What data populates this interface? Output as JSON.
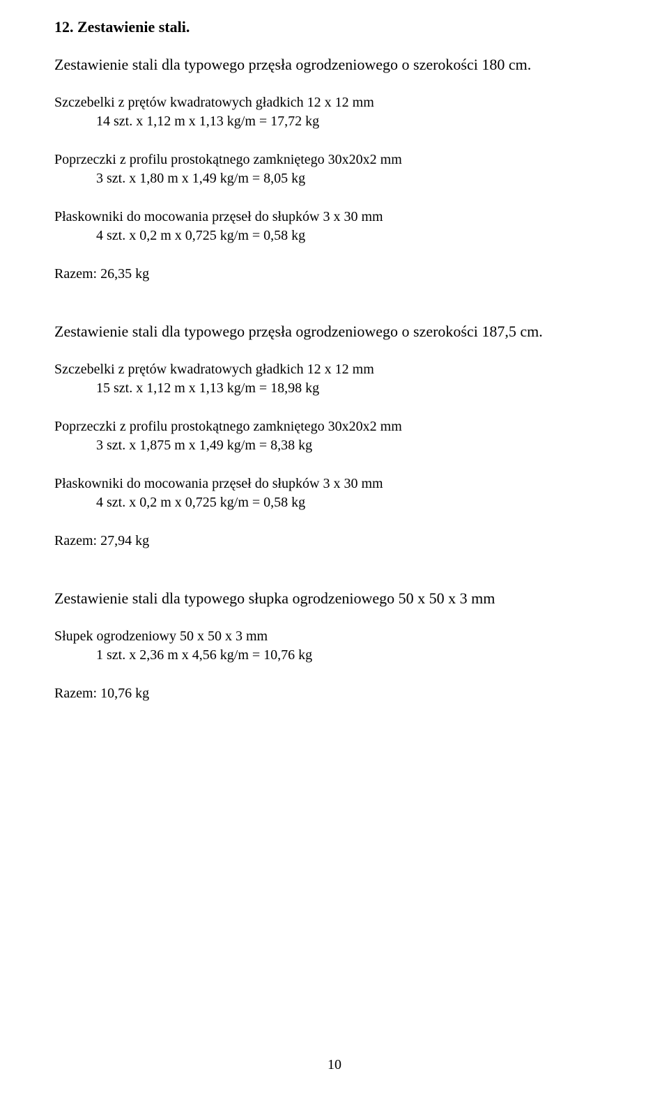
{
  "title": "12. Zestawienie stali.",
  "section1": {
    "heading": "Zestawienie stali dla typowego przęsła ogrodzeniowego o szerokości 180 cm.",
    "szczebelki_label": "Szczebelki z prętów kwadratowych gładkich 12 x 12 mm",
    "szczebelki_calc": "14 szt.  x  1,12 m  x  1,13 kg/m  =  17,72 kg",
    "poprzeczki_label": "Poprzeczki z profilu prostokątnego zamkniętego 30x20x2 mm",
    "poprzeczki_calc": "3 szt.  x  1,80 m  x  1,49 kg/m  =  8,05 kg",
    "plaskowniki_label": "Płaskowniki do mocowania przęseł do słupków 3 x 30 mm",
    "plaskowniki_calc": "4 szt.  x  0,2 m  x  0,725 kg/m  =  0,58 kg",
    "razem": "Razem: 26,35 kg"
  },
  "section2": {
    "heading": "Zestawienie stali dla typowego przęsła ogrodzeniowego o szerokości 187,5 cm.",
    "szczebelki_label": "Szczebelki z prętów kwadratowych gładkich 12 x 12 mm",
    "szczebelki_calc": "15 szt.  x  1,12 m  x  1,13 kg/m  =  18,98 kg",
    "poprzeczki_label": "Poprzeczki z profilu prostokątnego zamkniętego 30x20x2 mm",
    "poprzeczki_calc": "3 szt.  x  1,875 m  x  1,49 kg/m  =  8,38 kg",
    "plaskowniki_label": "Płaskowniki do mocowania przęseł do słupków 3 x 30 mm",
    "plaskowniki_calc": "4 szt.  x  0,2 m  x  0,725 kg/m  =  0,58 kg",
    "razem": "Razem: 27,94 kg"
  },
  "section3": {
    "heading": "Zestawienie stali dla typowego słupka ogrodzeniowego 50 x 50 x 3 mm",
    "slupek_label": "Słupek ogrodzeniowy 50 x 50 x 3 mm",
    "slupek_calc": "1 szt.  x  2,36 m  x  4,56 kg/m  =  10,76 kg",
    "razem": "Razem: 10,76 kg"
  },
  "page_number": "10"
}
